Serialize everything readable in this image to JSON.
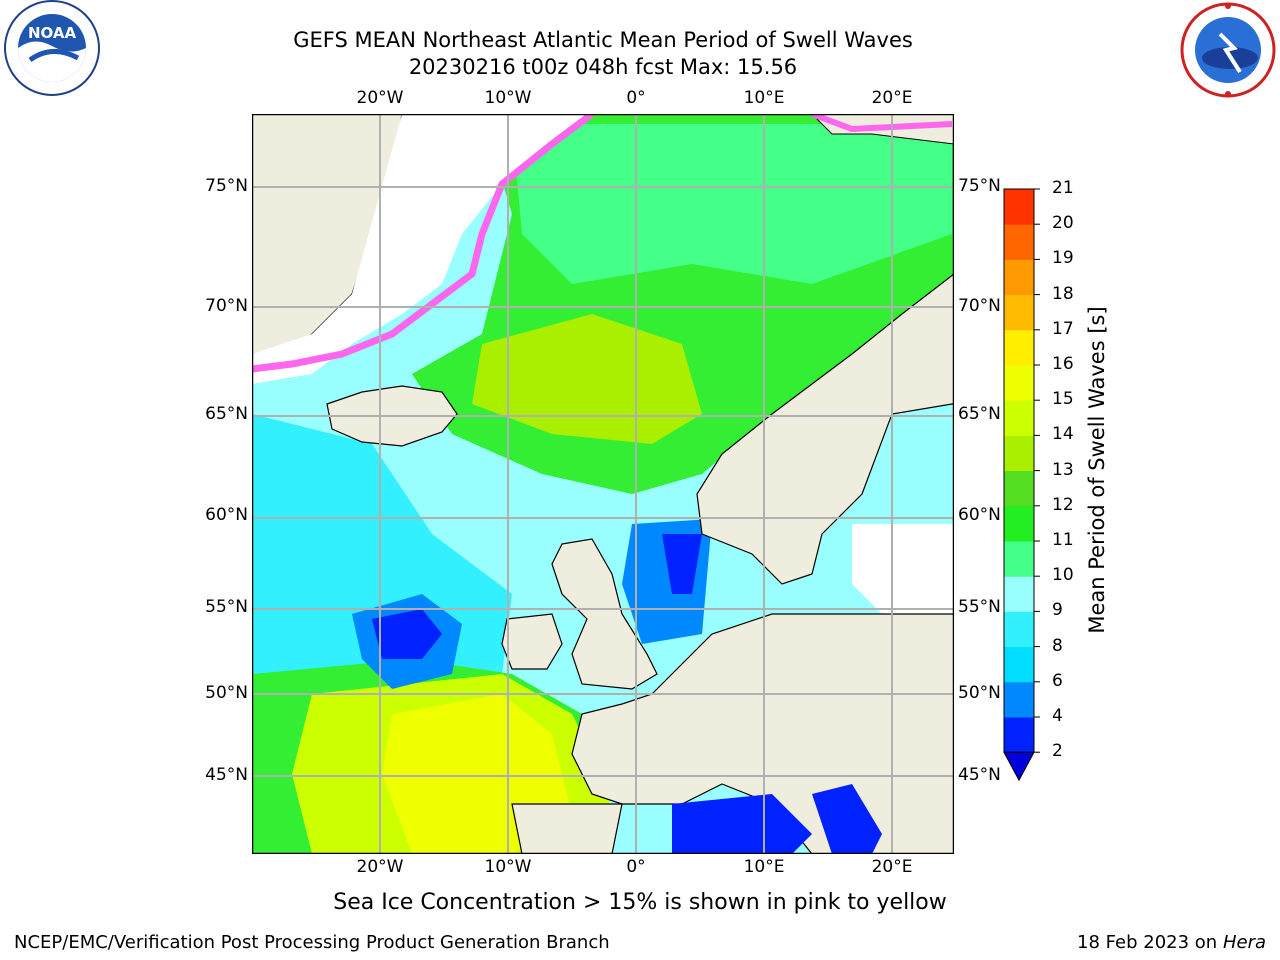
{
  "title_line1": "GEFS MEAN Northeast Atlantic Mean Period of Swell Waves",
  "title_line2": "20230216 t00z 048h fcst   Max: 15.56",
  "lon_labels": [
    "20°W",
    "10°W",
    "0°",
    "10°E",
    "20°E"
  ],
  "lat_labels": [
    "75°N",
    "70°N",
    "65°N",
    "60°N",
    "55°N",
    "50°N",
    "45°N"
  ],
  "colorbar": {
    "label": "Mean Period of Swell Waves [s]",
    "ticks": [
      "2",
      "4",
      "6",
      "8",
      "9",
      "10",
      "11",
      "12",
      "13",
      "14",
      "15",
      "16",
      "17",
      "18",
      "19",
      "20",
      "21"
    ],
    "colors": [
      "#0022ff",
      "#0088ff",
      "#00ddff",
      "#33f0ff",
      "#99ffff",
      "#44ff88",
      "#22ee22",
      "#55dd22",
      "#aaee00",
      "#ccff00",
      "#eeff00",
      "#ffee00",
      "#ffbb00",
      "#ff9900",
      "#ff6600",
      "#ff3300"
    ],
    "extend_color": "#0000dd",
    "extend_direction": "min"
  },
  "footnote": "Sea Ice Concentration > 15% is shown in pink to yellow",
  "footer_left": "NCEP/EMC/Verification Post Processing Product Generation Branch",
  "footer_right_date": "18 Feb 2023 on",
  "footer_right_host": "Hera",
  "logos": {
    "left": {
      "name": "NOAA",
      "ring_text": "NATIONAL OCEANIC AND ATMOSPHERIC ADMINISTRATION · U.S. DEPARTMENT OF COMMERCE"
    },
    "right": {
      "name": "NATIONAL WEATHER SERVICE"
    }
  },
  "colors": {
    "land": "#efedde",
    "ice": "#ff66ee",
    "grid": "#b0b0b0"
  }
}
